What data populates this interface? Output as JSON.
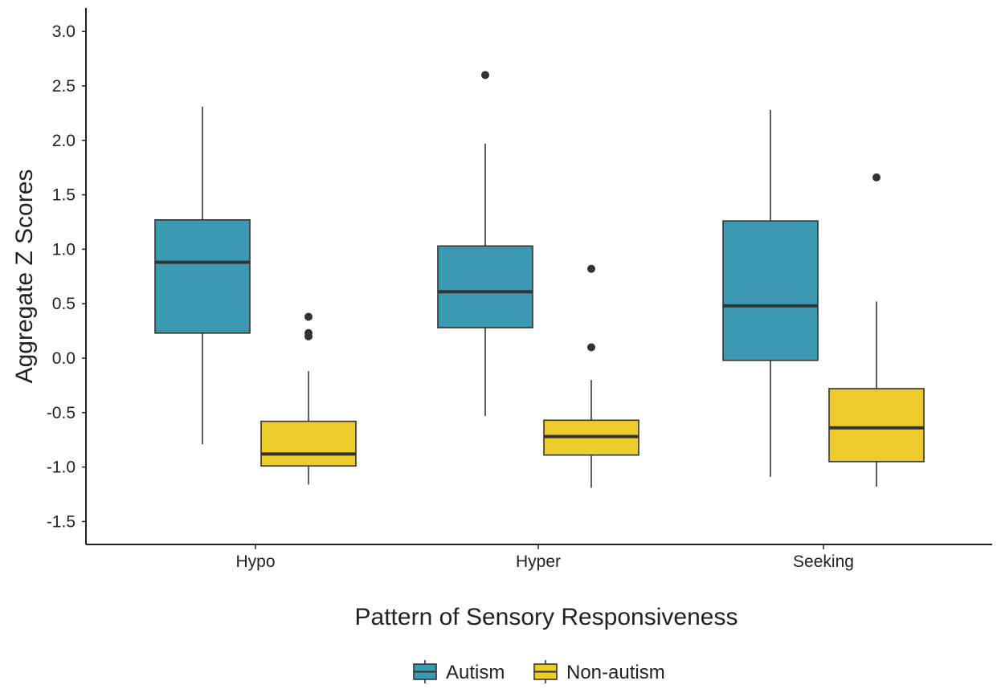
{
  "chart_data": {
    "type": "boxplot",
    "xlabel": "Pattern of Sensory Responsiveness",
    "ylabel": "Aggregate Z Scores",
    "ylim": [
      -1.72,
      3.22
    ],
    "yticks": [
      "3.0",
      "2.5",
      "2.0",
      "1.5",
      "1.0",
      "0.5",
      "0.0",
      "-0.5",
      "-1.0",
      "-1.5"
    ],
    "ytick_values": [
      3.0,
      2.5,
      2.0,
      1.5,
      1.0,
      0.5,
      0.0,
      -0.5,
      -1.0,
      -1.5
    ],
    "categories": [
      "Hypo",
      "Hyper",
      "Seeking"
    ],
    "grid": false,
    "legend_position": "bottom",
    "series": [
      {
        "name": "Autism",
        "color": "#3B9AB2",
        "boxes": [
          {
            "min": -0.79,
            "q1": 0.23,
            "median": 0.88,
            "q3": 1.27,
            "max": 2.31,
            "outliers": []
          },
          {
            "min": -0.53,
            "q1": 0.28,
            "median": 0.61,
            "q3": 1.03,
            "max": 1.97,
            "outliers": [
              2.6
            ]
          },
          {
            "min": -1.09,
            "q1": -0.02,
            "median": 0.48,
            "q3": 1.26,
            "max": 2.28,
            "outliers": []
          }
        ]
      },
      {
        "name": "Non-autism",
        "color": "#EBCC2A",
        "boxes": [
          {
            "min": -1.16,
            "q1": -0.99,
            "median": -0.88,
            "q3": -0.58,
            "max": -0.12,
            "outliers": [
              0.2,
              0.23,
              0.38
            ]
          },
          {
            "min": -1.19,
            "q1": -0.89,
            "median": -0.72,
            "q3": -0.57,
            "max": -0.2,
            "outliers": [
              0.1,
              0.82
            ]
          },
          {
            "min": -1.18,
            "q1": -0.95,
            "median": -0.64,
            "q3": -0.28,
            "max": 0.52,
            "outliers": [
              1.66
            ]
          }
        ]
      }
    ]
  }
}
